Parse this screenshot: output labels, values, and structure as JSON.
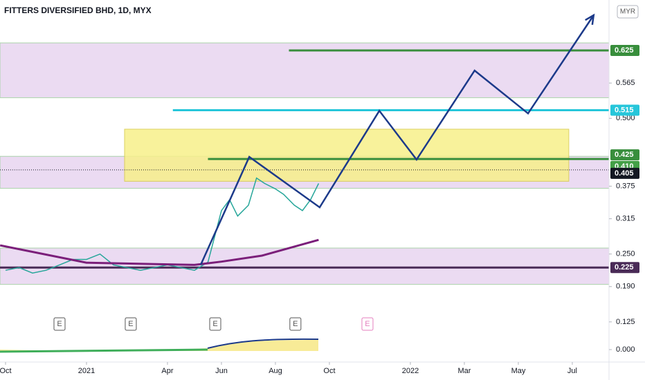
{
  "chart_data": {
    "type": "line",
    "title": "FITTERS DIVERSIFIED BHD, 1D, MYX",
    "currency": "MYR",
    "xlim": [
      -0.205,
      22.36
    ],
    "ylim": [
      0.107,
      0.718
    ],
    "xticks": [
      {
        "value": 0,
        "label": "Oct"
      },
      {
        "value": 3,
        "label": "2021"
      },
      {
        "value": 6,
        "label": "Apr"
      },
      {
        "value": 8,
        "label": "Jun"
      },
      {
        "value": 10,
        "label": "Aug"
      },
      {
        "value": 12,
        "label": "Oct"
      },
      {
        "value": 15,
        "label": "2022"
      },
      {
        "value": 17,
        "label": "Mar"
      },
      {
        "value": 19,
        "label": "May"
      },
      {
        "value": 21,
        "label": "Jul"
      }
    ],
    "yticks": [
      0.125,
      {
        "value": 0.19,
        "label": "0.190"
      },
      {
        "value": 0.25,
        "label": "0.250"
      },
      0.315,
      0.375,
      {
        "value": 0.5,
        "label": "0.500"
      },
      0.565
    ],
    "indicator_yticks": [
      {
        "value": 0,
        "label": "0.000"
      }
    ],
    "zones": [
      {
        "color": "#e8d5f0",
        "x": [
          -0.205,
          22.36
        ],
        "y": [
          0.538,
          0.639
        ]
      },
      {
        "color": "#e8d5f0",
        "x": [
          -0.205,
          22.36
        ],
        "y": [
          0.371,
          0.43
        ]
      },
      {
        "color": "#e8d5f0",
        "x": [
          -0.205,
          22.36
        ],
        "y": [
          0.194,
          0.261
        ]
      },
      {
        "color": "#f7f08a",
        "x": [
          4.41,
          20.87
        ],
        "y": [
          0.384,
          0.48
        ]
      }
    ],
    "levels": [
      {
        "value": 0.625,
        "label": "0.625",
        "color": "#388e3c",
        "from": 10.5
      },
      {
        "value": 0.515,
        "label": "0.515",
        "color": "#26c6da",
        "from": 6.2
      },
      {
        "value": 0.425,
        "label": "0.425",
        "color": "#388e3c",
        "from": 7.5
      },
      {
        "value": 0.41,
        "label": "0.410",
        "color": "#43a047",
        "from": 22.36
      },
      {
        "value": 0.405,
        "label": "0.405",
        "color": "#131722",
        "from": -0.205
      },
      {
        "value": 0.225,
        "label": "0.225",
        "color": "#4a2b57",
        "from": -0.205
      }
    ],
    "events": [
      {
        "label": "E",
        "x": 2.0,
        "color": "#555"
      },
      {
        "label": "E",
        "x": 4.64,
        "color": "#555"
      },
      {
        "label": "E",
        "x": 7.77,
        "color": "#555"
      },
      {
        "label": "E",
        "x": 10.74,
        "color": "#555"
      },
      {
        "label": "E",
        "x": 13.41,
        "color": "#e57fbf"
      }
    ],
    "series": [
      {
        "color": "#26a69a",
        "width": 1.5,
        "x": [
          0,
          0.5,
          1,
          1.5,
          2,
          2.5,
          3,
          3.5,
          4,
          4.5,
          5,
          5.5,
          6,
          6.5,
          7,
          7.5,
          8,
          8.3,
          8.6,
          9,
          9.3,
          9.6,
          10,
          10.3,
          10.7,
          11,
          11.3,
          11.6
        ],
        "values": [
          0.22,
          0.225,
          0.215,
          0.22,
          0.23,
          0.24,
          0.24,
          0.25,
          0.23,
          0.225,
          0.22,
          0.225,
          0.23,
          0.225,
          0.22,
          0.235,
          0.33,
          0.35,
          0.32,
          0.34,
          0.39,
          0.38,
          0.37,
          0.36,
          0.34,
          0.33,
          0.35,
          0.38
        ]
      },
      {
        "color": "#7b1f7a",
        "width": 3,
        "x": [
          -0.2,
          3,
          7,
          8,
          9.5,
          11.6
        ],
        "values": [
          0.266,
          0.234,
          0.23,
          0.236,
          0.247,
          0.276
        ]
      },
      {
        "color": "#1c3a8a",
        "width": 2.5,
        "x": [
          7.23,
          9.03,
          11.64,
          13.85,
          15.23,
          17.38,
          19.36,
          21.79
        ],
        "values": [
          0.23,
          0.429,
          0.336,
          0.514,
          0.424,
          0.588,
          0.509,
          0.69
        ]
      }
    ]
  }
}
